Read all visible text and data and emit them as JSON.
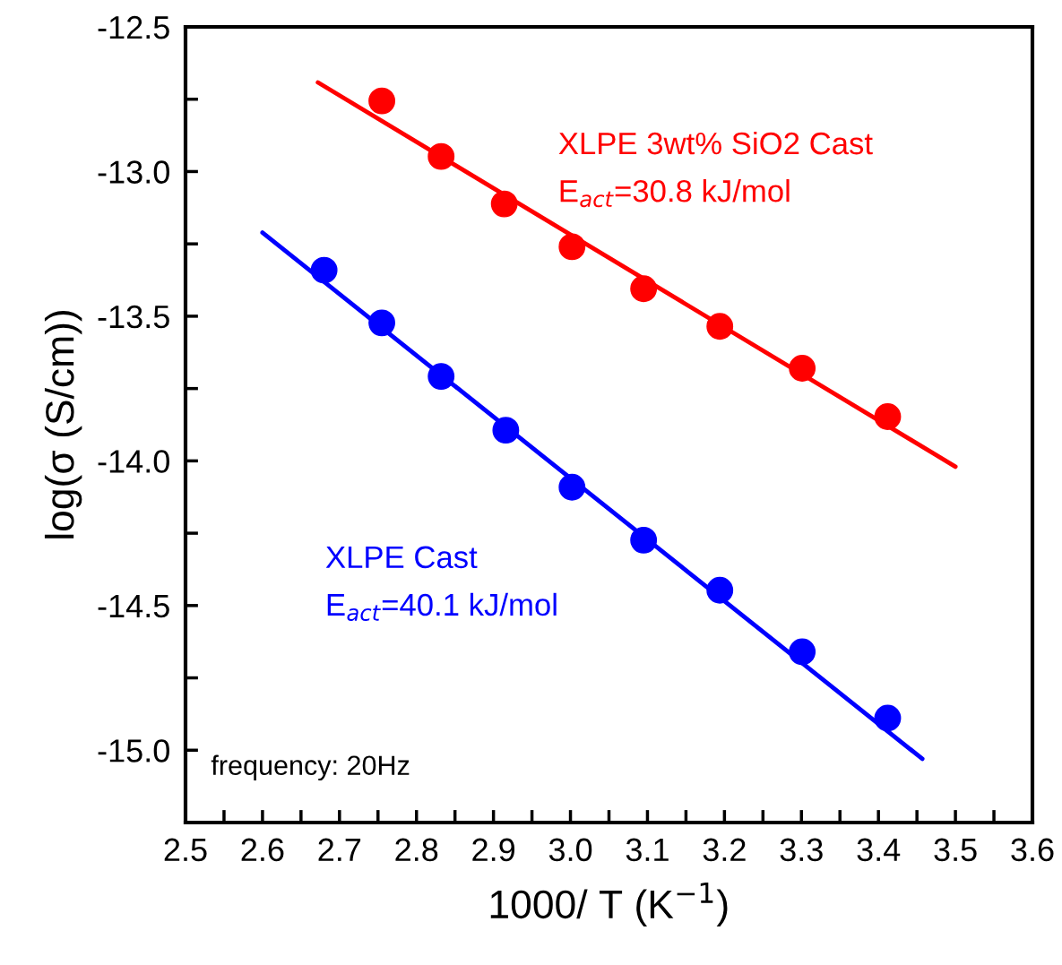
{
  "chart_data": {
    "type": "scatter",
    "xlabel": "1000/ T (K$^{−1}$)",
    "ylabel": "log(σ (S/cm))",
    "xlim": [
      2.5,
      3.6
    ],
    "ylim": [
      -15.25,
      -12.5
    ],
    "xticks": [
      2.5,
      {
        "value": 2.55,
        "label": null
      },
      2.6,
      {
        "value": 2.65,
        "label": null
      },
      2.7,
      {
        "value": 2.75,
        "label": null
      },
      2.8,
      {
        "value": 2.85,
        "label": null
      },
      2.9,
      {
        "value": 2.95,
        "label": null
      },
      {
        "value": 3.0,
        "label": "3.0"
      },
      {
        "value": 3.05,
        "label": null
      },
      3.1,
      {
        "value": 3.15,
        "label": null
      },
      3.2,
      {
        "value": 3.25,
        "label": null
      },
      3.3,
      {
        "value": 3.35,
        "label": null
      },
      3.4,
      {
        "value": 3.45,
        "label": null
      },
      3.5,
      {
        "value": 3.55,
        "label": null
      },
      3.6
    ],
    "yticks": [
      -12.5,
      {
        "value": -12.75,
        "label": null
      },
      {
        "value": -13.0,
        "label": "-13.0"
      },
      {
        "value": -13.25,
        "label": null
      },
      -13.5,
      {
        "value": -13.75,
        "label": null
      },
      {
        "value": -14.0,
        "label": "-14.0"
      },
      {
        "value": -14.25,
        "label": null
      },
      -14.5,
      {
        "value": -14.75,
        "label": null
      },
      {
        "value": -15.0,
        "label": "-15.0"
      }
    ],
    "marker": "circle",
    "grid": false,
    "legend": false,
    "series": [
      {
        "name": "XLPE 3wt% SiO2 Cast",
        "color": "#ff0000",
        "x": [
          2.755,
          2.832,
          2.914,
          3.002,
          3.095,
          3.194,
          3.301,
          3.412
        ],
        "values": [
          -12.756,
          -12.948,
          -13.112,
          -13.26,
          -13.405,
          -13.535,
          -13.68,
          -13.847
        ]
      },
      {
        "name": "XLPE Cast",
        "color": "#0000ff",
        "x": [
          2.68,
          2.755,
          2.832,
          2.916,
          3.002,
          3.095,
          3.194,
          3.301,
          3.412
        ],
        "values": [
          -13.341,
          -13.523,
          -13.708,
          -13.894,
          -14.091,
          -14.274,
          -14.447,
          -14.66,
          -14.889
        ]
      },
      {
        "type": "line",
        "color": "#ff0000",
        "marker": "none",
        "x": [
          2.672,
          3.5
        ],
        "values": [
          -12.692,
          -14.02
        ]
      },
      {
        "type": "line",
        "color": "#0000ff",
        "marker": "none",
        "x": [
          2.6,
          3.457
        ],
        "values": [
          -13.211,
          -15.03
        ]
      }
    ],
    "annotations": [
      "E$_{act}$=30.8 kJ/mol",
      "E$_{act}$=40.1 kJ/mol",
      "frequency: 20Hz"
    ]
  }
}
